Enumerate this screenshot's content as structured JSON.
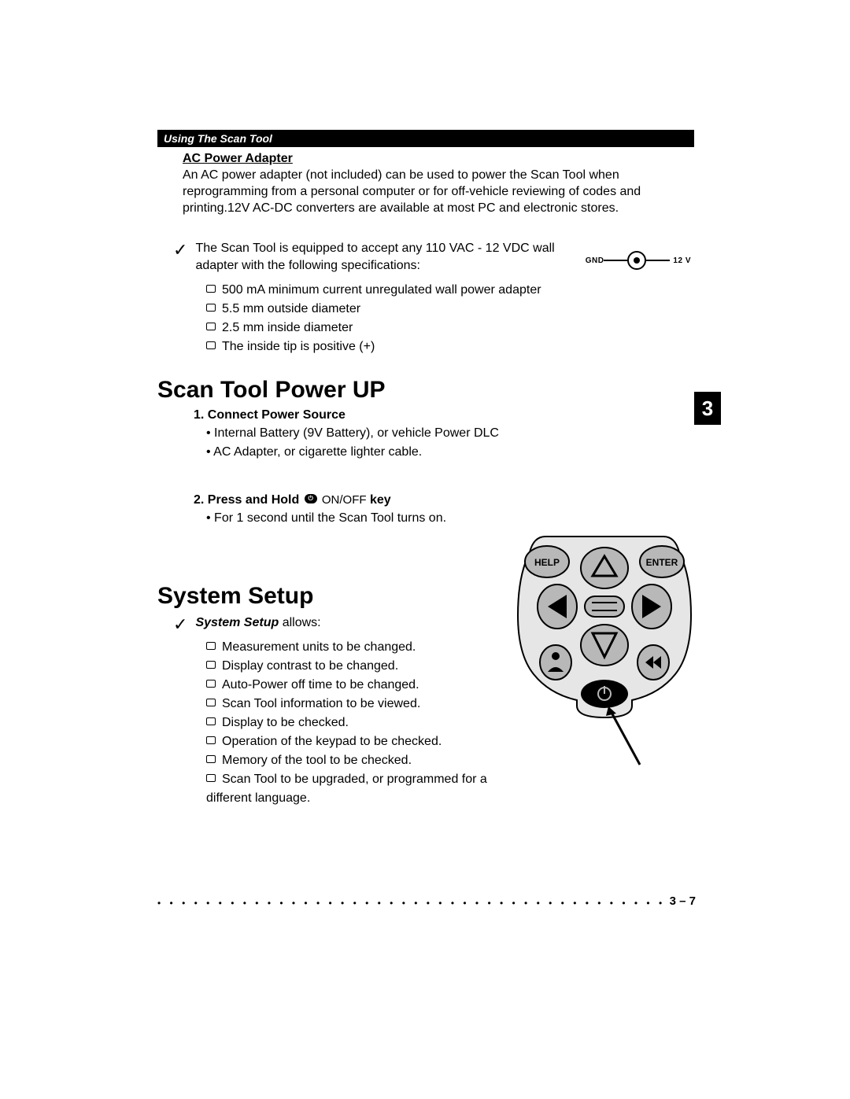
{
  "header": {
    "title": "Using The Scan Tool"
  },
  "chapter_tab": "3",
  "ac_adapter": {
    "heading": "AC Power Adapter",
    "para": "An AC power adapter (not included) can be used to power the Scan Tool when reprogramming from a personal computer or for off-vehicle reviewing of codes and printing.12V AC-DC converters are available at most PC and electronic stores.",
    "check_text_1": "The Scan Tool is equipped to accept any 110 VAC - 12 VDC wall adapter with the following specifications:",
    "plug_left": "GND",
    "plug_right": "12 V",
    "specs": [
      "500 mA minimum current unregulated wall power adapter",
      "5.5 mm outside diameter",
      "2.5 mm inside diameter",
      "The inside tip is positive (+)"
    ]
  },
  "powerup": {
    "title": "Scan Tool Power UP",
    "step1_heading": "1. Connect Power Source",
    "step1_items": [
      "Internal Battery (9V Battery), or vehicle Power DLC",
      "AC Adapter, or cigarette lighter cable."
    ],
    "step2_prefix": "2. Press and Hold ",
    "step2_onoff": " ON/OFF",
    "step2_suffix": " key",
    "step2_item": "For 1 second until the Scan Tool turns on."
  },
  "system_setup": {
    "title": "System Setup",
    "check_label": "System Setup",
    "check_suffix": " allows:",
    "items": [
      "Measurement units to be changed.",
      "Display contrast to be changed.",
      "Auto-Power off time to be changed.",
      "Scan Tool information to be viewed.",
      "Display to be checked.",
      "Operation of the keypad to be checked.",
      "Memory of the tool to be checked.",
      "Scan Tool to be upgraded, or programmed for a different language."
    ]
  },
  "keypad": {
    "help_label": "HELP",
    "enter_label": "ENTER",
    "button_fill": "#b8b8b8",
    "button_stroke": "#000000",
    "body_fill": "#e6e6e6"
  },
  "footer": {
    "page": "3 – 7"
  }
}
